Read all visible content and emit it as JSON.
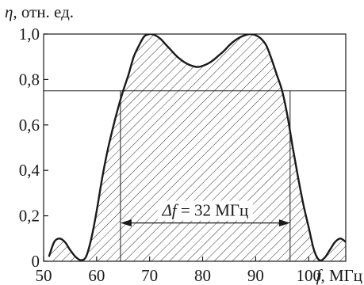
{
  "chart_data": {
    "type": "line",
    "ylabel_symbol": "η",
    "ylabel_unit": ", отн. ед.",
    "xlabel_symbol": "f",
    "xlabel_unit": ", МГц",
    "annotation_symbol": "Δf",
    "annotation_value": " = 32 МГц",
    "xlim": [
      50,
      107
    ],
    "ylim": [
      0,
      1.0
    ],
    "xticks": [
      50,
      60,
      70,
      80,
      90,
      100
    ],
    "yticks": [
      "0",
      "0,2",
      "0,4",
      "0,6",
      "0,8",
      "1,0"
    ],
    "ytick_values": [
      0,
      0.2,
      0.4,
      0.6,
      0.8,
      1.0
    ],
    "threshold_y": 0.75,
    "band_x": [
      64.5,
      96.5
    ],
    "arrow_y": 0.2,
    "series": [
      {
        "x": [
          51,
          52,
          53,
          54,
          55,
          56,
          57,
          58,
          59,
          60,
          61,
          62,
          63,
          64,
          65,
          66,
          67,
          68,
          69,
          70,
          71,
          72,
          73,
          74,
          75,
          76,
          77,
          78,
          79,
          80,
          81,
          82,
          83,
          84,
          85,
          86,
          87,
          88,
          89,
          90,
          91,
          92,
          93,
          94,
          95,
          96,
          97,
          98,
          99,
          100,
          101,
          102,
          103,
          104,
          105,
          106,
          107
        ],
        "y": [
          0.02,
          0.085,
          0.1,
          0.085,
          0.05,
          0.02,
          0.005,
          0.02,
          0.1,
          0.22,
          0.36,
          0.48,
          0.58,
          0.67,
          0.75,
          0.82,
          0.9,
          0.95,
          0.99,
          1.0,
          0.995,
          0.98,
          0.955,
          0.93,
          0.905,
          0.885,
          0.87,
          0.86,
          0.855,
          0.86,
          0.87,
          0.885,
          0.905,
          0.925,
          0.95,
          0.97,
          0.985,
          0.995,
          1.0,
          0.995,
          0.98,
          0.95,
          0.89,
          0.82,
          0.75,
          0.64,
          0.5,
          0.37,
          0.25,
          0.15,
          0.05,
          0.005,
          0.015,
          0.05,
          0.085,
          0.1,
          0.085
        ]
      }
    ]
  }
}
